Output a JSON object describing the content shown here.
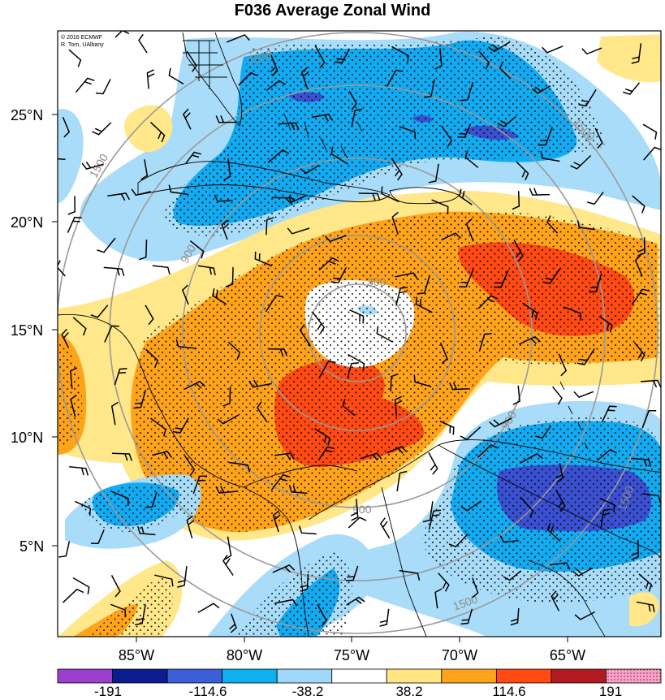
{
  "title": "F036 Average Zonal Wind",
  "credit": {
    "line1": "© 2016 ECMWF",
    "line2": "R. Torn, UAlbany"
  },
  "lat_labels": [
    "25°N",
    "20°N",
    "15°N",
    "10°N",
    "5°N"
  ],
  "lon_labels": [
    "85°W",
    "80°W",
    "75°W",
    "70°W",
    "65°W"
  ],
  "ring_labels": [
    "300",
    "900",
    "1500"
  ],
  "colorbar": {
    "tick_labels": [
      "-191",
      "-114.6",
      "-38.2",
      "38.2",
      "114.6",
      "191"
    ],
    "colors": [
      "#9b3fce",
      "#0b1d8e",
      "#3a5fd6",
      "#0fb0f0",
      "#9fd8f8",
      "#ffffff",
      "#ffe680",
      "#ffa41a",
      "#ff4a14",
      "#b01a20",
      "#ff9fc8"
    ]
  },
  "shading_colors": {
    "strong_negative": "#3a50d0",
    "negative": "#12aaf0",
    "weak_negative": "#a8dcf8",
    "weak_positive": "#ffe78a",
    "positive": "#ffa41a",
    "strong_positive": "#ff4a14"
  }
}
